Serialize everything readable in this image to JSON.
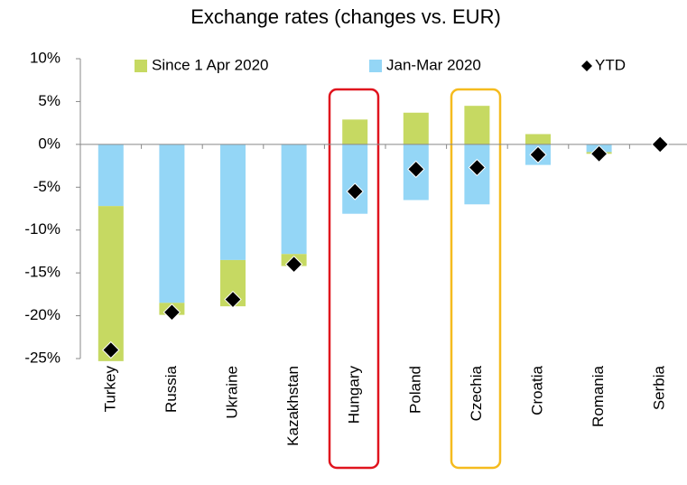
{
  "chart_data": {
    "type": "bar",
    "title": "Exchange rates (changes vs. EUR)",
    "categories": [
      "Turkey",
      "Russia",
      "Ukraine",
      "Kazakhstan",
      "Hungary",
      "Poland",
      "Czechia",
      "Croatia",
      "Romania",
      "Serbia"
    ],
    "series": [
      {
        "name": "Since 1 Apr 2020",
        "type": "bar",
        "color": "#c6d962",
        "values": [
          -18.1,
          -1.4,
          -5.4,
          -1.4,
          2.9,
          3.7,
          4.5,
          1.2,
          -0.2,
          0
        ]
      },
      {
        "name": "Jan-Mar 2020",
        "type": "bar",
        "color": "#94d6f6",
        "values": [
          -7.2,
          -18.5,
          -13.5,
          -12.8,
          -8.1,
          -6.5,
          -7.0,
          -2.4,
          -0.9,
          0
        ]
      },
      {
        "name": "YTD",
        "type": "marker",
        "color": "#000000",
        "values": [
          -24.0,
          -19.6,
          -18.1,
          -14.0,
          -5.5,
          -2.9,
          -2.7,
          -1.2,
          -1.1,
          0.0
        ]
      }
    ],
    "ylim": [
      -25,
      10
    ],
    "yticks": [
      {
        "value": -25,
        "label": "-25%"
      },
      {
        "value": -20,
        "label": "-20%"
      },
      {
        "value": -15,
        "label": "-15%"
      },
      {
        "value": -10,
        "label": "-10%"
      },
      {
        "value": -5,
        "label": "-5%"
      },
      {
        "value": 0,
        "label": "0%"
      },
      {
        "value": 5,
        "label": "5%"
      },
      {
        "value": 10,
        "label": "10%"
      }
    ],
    "stacked": true
  }
}
